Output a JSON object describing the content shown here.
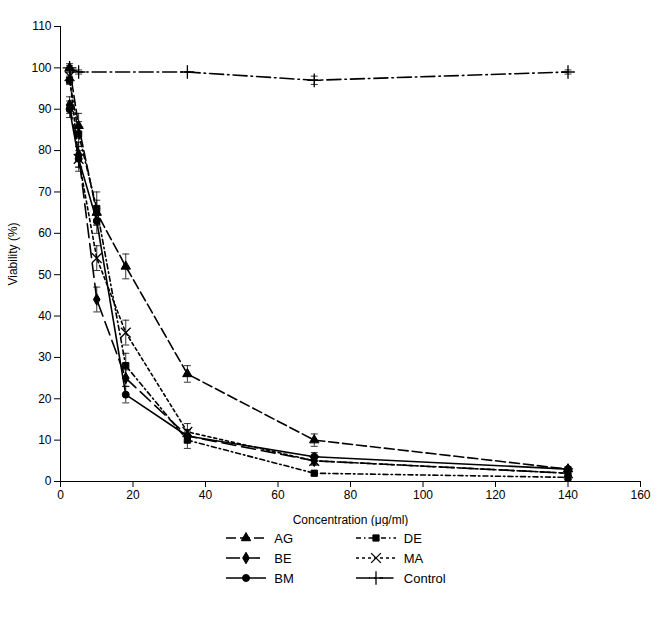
{
  "chart_data": {
    "type": "line",
    "xlabel": "Concentration (μg/ml)",
    "ylabel": "Viability (%)",
    "xlim": [
      0,
      160
    ],
    "ylim": [
      0,
      110
    ],
    "xticks": [
      0,
      20,
      40,
      60,
      80,
      100,
      120,
      140,
      160
    ],
    "yticks": [
      0,
      10,
      20,
      30,
      40,
      50,
      60,
      70,
      80,
      90,
      100,
      110
    ],
    "grid": false,
    "legend": "bottom",
    "series": [
      {
        "name": "AG",
        "color": "black",
        "marker": "triangle",
        "line_style": "dashed",
        "x": [
          2.5,
          5,
          10,
          18,
          35,
          70,
          140
        ],
        "values": [
          100,
          86,
          65,
          52,
          26,
          10,
          3
        ],
        "yerr": [
          1,
          3,
          3,
          3,
          2,
          1.5,
          0.5
        ]
      },
      {
        "name": "BE",
        "color": "black",
        "marker": "diamond",
        "line_style": "long_dashed",
        "x": [
          2.5,
          5,
          10,
          18,
          35,
          70,
          140
        ],
        "values": [
          91,
          79,
          44,
          25,
          11,
          5,
          2
        ],
        "yerr": [
          2,
          3,
          3,
          2,
          1.5,
          1,
          0.5
        ]
      },
      {
        "name": "BM",
        "color": "black",
        "marker": "circle",
        "line_style": "solid",
        "x": [
          2.5,
          5,
          10,
          18,
          35,
          70,
          140
        ],
        "values": [
          90,
          78,
          63,
          21,
          11,
          6,
          3
        ],
        "yerr": [
          2,
          3,
          3,
          2,
          1.5,
          1,
          0.5
        ]
      },
      {
        "name": "DE",
        "color": "black",
        "marker": "square",
        "line_style": "dashdot",
        "x": [
          2.5,
          5,
          10,
          18,
          35,
          70,
          140
        ],
        "values": [
          97,
          84,
          66,
          28,
          10,
          2,
          1
        ],
        "yerr": [
          1,
          3,
          4,
          3,
          2,
          0.5,
          0.5
        ]
      },
      {
        "name": "MA",
        "color": "black",
        "marker": "x",
        "line_style": "dotted",
        "x": [
          2.5,
          5,
          10,
          18,
          35,
          70,
          140
        ],
        "values": [
          98,
          78,
          54,
          36,
          12,
          5,
          2
        ],
        "yerr": [
          1,
          2,
          3,
          3,
          2,
          1,
          0.5
        ]
      },
      {
        "name": "Control",
        "color": "black",
        "marker": "plus",
        "line_style": "long_dashdot",
        "x": [
          2.5,
          5,
          35,
          70,
          140
        ],
        "values": [
          100,
          99,
          99,
          97,
          99
        ],
        "yerr": [
          0.5,
          0.5,
          0,
          1,
          0.5
        ]
      }
    ]
  }
}
